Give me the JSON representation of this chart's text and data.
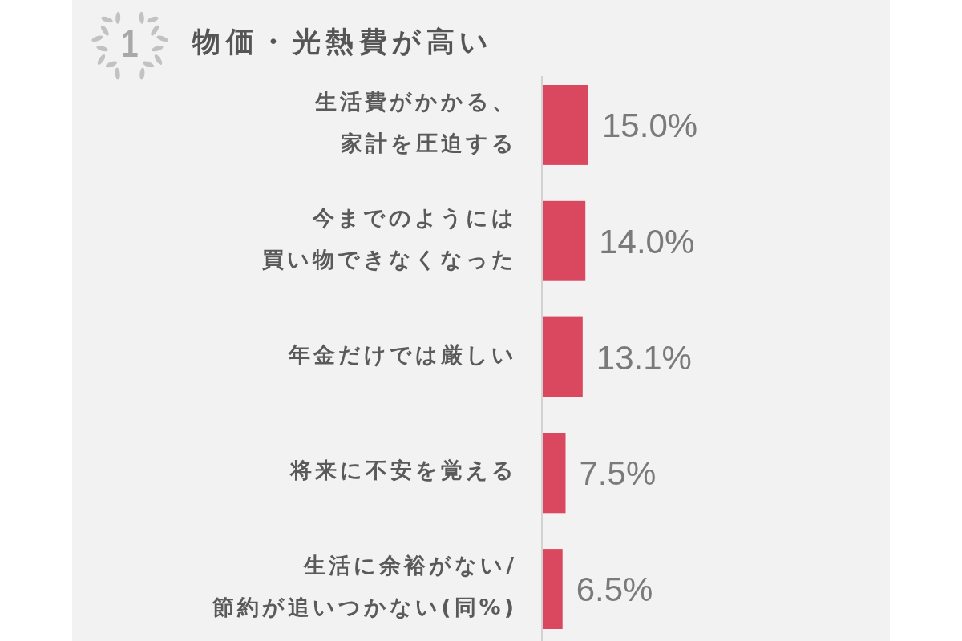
{
  "chart_data": {
    "type": "bar",
    "orientation": "horizontal",
    "title": "物価・光熱費が高い",
    "annotations": [
      "1"
    ],
    "categories": [
      "生活費がかかる、家計を圧迫する",
      "今までのようには買い物できなくなった",
      "年金だけでは厳しい",
      "将来に不安を覚える",
      "生活に余裕がない/節約が追いつかない(同%)"
    ],
    "values": [
      15.0,
      14.0,
      13.1,
      7.5,
      6.5
    ],
    "value_labels": [
      "15.0%",
      "14.0%",
      "13.1%",
      "7.5%",
      "6.5%"
    ],
    "color": "#d9485f",
    "tick_labels": "y"
  }
}
